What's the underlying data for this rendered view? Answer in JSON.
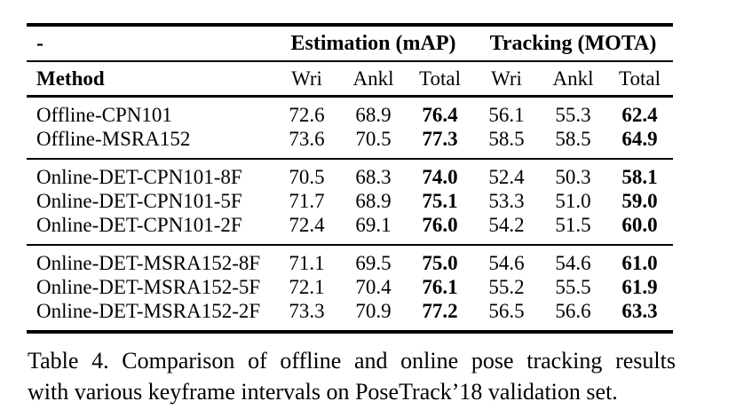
{
  "table": {
    "corner_label": "-",
    "group_headers": [
      "Estimation (mAP)",
      "Tracking (MOTA)"
    ],
    "columns": [
      "Method",
      "Wri",
      "Ankl",
      "Total",
      "Wri",
      "Ankl",
      "Total"
    ],
    "sections": [
      {
        "rows": [
          {
            "method": "Offline-CPN101",
            "values": [
              "72.6",
              "68.9",
              "76.4",
              "56.1",
              "55.3",
              "62.4"
            ]
          },
          {
            "method": "Offline-MSRA152",
            "values": [
              "73.6",
              "70.5",
              "77.3",
              "58.5",
              "58.5",
              "64.9"
            ]
          }
        ]
      },
      {
        "rows": [
          {
            "method": "Online-DET-CPN101-8F",
            "values": [
              "70.5",
              "68.3",
              "74.0",
              "52.4",
              "50.3",
              "58.1"
            ]
          },
          {
            "method": "Online-DET-CPN101-5F",
            "values": [
              "71.7",
              "68.9",
              "75.1",
              "53.3",
              "51.0",
              "59.0"
            ]
          },
          {
            "method": "Online-DET-CPN101-2F",
            "values": [
              "72.4",
              "69.1",
              "76.0",
              "54.2",
              "51.5",
              "60.0"
            ]
          }
        ]
      },
      {
        "rows": [
          {
            "method": "Online-DET-MSRA152-8F",
            "values": [
              "71.1",
              "69.5",
              "75.0",
              "54.6",
              "54.6",
              "61.0"
            ]
          },
          {
            "method": "Online-DET-MSRA152-5F",
            "values": [
              "72.1",
              "70.4",
              "76.1",
              "55.2",
              "55.5",
              "61.9"
            ]
          },
          {
            "method": "Online-DET-MSRA152-2F",
            "values": [
              "73.3",
              "70.9",
              "77.2",
              "56.5",
              "56.6",
              "63.3"
            ]
          }
        ]
      }
    ]
  },
  "caption": {
    "line1": "Table 4. Comparison of offline and online pose tracking results",
    "line2": "with various keyframe intervals on PoseTrack’18 validation set."
  },
  "colors": {
    "text": "#000000",
    "rule": "#000000",
    "background": "#ffffff"
  }
}
